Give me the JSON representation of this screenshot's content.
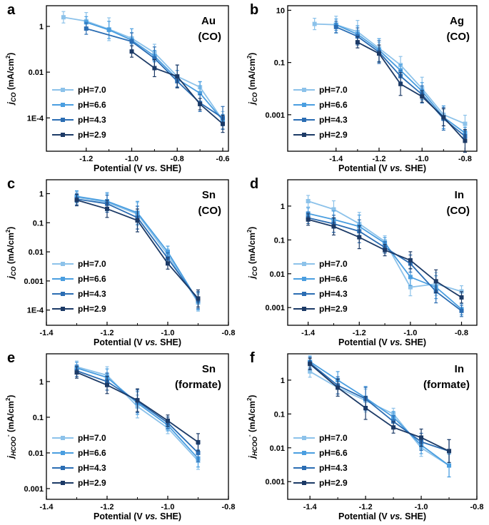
{
  "legend": [
    "pH=7.0",
    "pH=6.6",
    "pH=4.3",
    "pH=2.9"
  ],
  "colors": {
    "pH=7.0": "#8cc2ea",
    "pH=6.6": "#4a9ee0",
    "pH=4.3": "#2b6db3",
    "pH=2.9": "#1c3a66"
  },
  "chart_data": [
    {
      "panel": "a",
      "type": "line",
      "label_1": "Au",
      "label_2": "(CO)",
      "xlabel": "Potential (V vs. SHE)",
      "ylabel": "jCO (mA/cm2)",
      "xlim": [
        -1.375,
        -0.575
      ],
      "ylim": [
        3.5e-06,
        8
      ],
      "yscale": "log",
      "xticks": [
        -1.2,
        -1.0,
        -0.8,
        -0.6
      ],
      "xticklabels": [
        "-1.2",
        "-1.0",
        "-0.8",
        "-0.6"
      ],
      "yticks": [
        1,
        0.01,
        0.0001
      ],
      "yticklabels": [
        "1",
        "0.01",
        "1E-4"
      ],
      "series": [
        {
          "name": "pH=7.0",
          "x": [
            -1.3,
            -1.2,
            -1.1,
            -1.0,
            -0.9,
            -0.8,
            -0.7,
            -0.6
          ],
          "y": [
            2.5,
            1.7,
            0.75,
            0.3,
            0.07,
            0.0065,
            0.0022,
            8e-05
          ]
        },
        {
          "name": "pH=6.6",
          "x": [
            -1.2,
            -1.1,
            -1.0,
            -0.9,
            -0.8,
            -0.7,
            -0.6
          ],
          "y": [
            1.5,
            0.7,
            0.25,
            0.05,
            0.005,
            0.0012,
            8e-05
          ]
        },
        {
          "name": "pH=4.3",
          "x": [
            -1.2,
            -1.0,
            -0.9,
            -0.8,
            -0.7,
            -0.6
          ],
          "y": [
            0.8,
            0.22,
            0.04,
            0.004,
            0.00045,
            0.0001
          ]
        },
        {
          "name": "pH=2.9",
          "x": [
            -1.0,
            -0.9,
            -0.8,
            -0.7,
            -0.6
          ],
          "y": [
            0.08,
            0.015,
            0.0065,
            0.0004,
            5.5e-05
          ]
        }
      ]
    },
    {
      "panel": "b",
      "type": "line",
      "label_1": "Ag",
      "label_2": "(CO)",
      "xlabel": "Potential (V vs. SHE)",
      "ylabel": "jCO (mA/cm2)",
      "xlim": [
        -1.625,
        -0.745
      ],
      "ylim": [
        4e-05,
        15
      ],
      "yscale": "log",
      "xticks": [
        -1.4,
        -1.2,
        -1.0,
        -0.8
      ],
      "xticklabels": [
        "-1.4",
        "-1.2",
        "-1.0",
        "-0.8"
      ],
      "yticks": [
        10,
        0.1,
        0.001
      ],
      "yticklabels": [
        "10",
        "0.1",
        "0.001"
      ],
      "series": [
        {
          "name": "pH=7.0",
          "x": [
            -1.5,
            -1.4,
            -1.3,
            -1.2,
            -1.1,
            -1.0,
            -0.9,
            -0.8
          ],
          "y": [
            3.0,
            2.8,
            1.5,
            0.35,
            0.08,
            0.01,
            0.001,
            0.00045
          ]
        },
        {
          "name": "pH=6.6",
          "x": [
            -1.4,
            -1.3,
            -1.2,
            -1.1,
            -1.0,
            -0.9,
            -0.8
          ],
          "y": [
            2.8,
            1.2,
            0.3,
            0.05,
            0.008,
            0.0008,
            0.0002
          ]
        },
        {
          "name": "pH=4.3",
          "x": [
            -1.4,
            -1.3,
            -1.2,
            -1.1,
            -1.0,
            -0.9,
            -0.8
          ],
          "y": [
            2.3,
            1.0,
            0.25,
            0.03,
            0.006,
            0.0007,
            0.00015
          ]
        },
        {
          "name": "pH=2.9",
          "x": [
            -1.3,
            -1.2,
            -1.1,
            -1.0,
            -0.9,
            -0.8
          ],
          "y": [
            0.6,
            0.22,
            0.015,
            0.005,
            0.0008,
            0.0001
          ]
        }
      ]
    },
    {
      "panel": "c",
      "type": "line",
      "label_1": "Sn",
      "label_2": "(CO)",
      "xlabel": "Potential (V vs. SHE)",
      "ylabel": "jCO (mA/cm2)",
      "xlim": [
        -1.4,
        -0.8
      ],
      "ylim": [
        3e-05,
        3
      ],
      "yscale": "log",
      "xticks": [
        -1.4,
        -1.2,
        -1.0,
        -0.8
      ],
      "xticklabels": [
        "-1.4",
        "-1.2",
        "-1.0",
        "-0.8"
      ],
      "yticks": [
        1,
        0.1,
        0.01,
        0.001,
        0.0001
      ],
      "yticklabels": [
        "1",
        "0.1",
        "0.01",
        "0.001",
        "1E-4"
      ],
      "series": [
        {
          "name": "pH=7.0",
          "x": [
            -1.3,
            -1.2,
            -1.1,
            -1.0,
            -0.9
          ],
          "y": [
            0.75,
            0.5,
            0.2,
            0.008,
            0.00018
          ]
        },
        {
          "name": "pH=6.6",
          "x": [
            -1.3,
            -1.2,
            -1.1,
            -1.0,
            -0.9
          ],
          "y": [
            0.8,
            0.55,
            0.22,
            0.01,
            0.0002
          ]
        },
        {
          "name": "pH=4.3",
          "x": [
            -1.3,
            -1.2,
            -1.1,
            -1.0,
            -0.9
          ],
          "y": [
            0.65,
            0.45,
            0.15,
            0.006,
            0.00022
          ]
        },
        {
          "name": "pH=2.9",
          "x": [
            -1.3,
            -1.2,
            -1.1,
            -1.0,
            -0.9
          ],
          "y": [
            0.6,
            0.3,
            0.12,
            0.004,
            0.00025
          ]
        }
      ]
    },
    {
      "panel": "d",
      "type": "line",
      "label_1": "In",
      "label_2": "(CO)",
      "xlabel": "Potential (V vs. SHE)",
      "ylabel": "jCO (mA/cm2)",
      "xlim": [
        -1.48,
        -0.74
      ],
      "ylim": [
        0.0003,
        6
      ],
      "yscale": "log",
      "xticks": [
        -1.4,
        -1.2,
        -1.0,
        -0.8
      ],
      "xticklabels": [
        "-1.4",
        "-1.2",
        "-1.0",
        "-0.8"
      ],
      "yticks": [
        1,
        0.1,
        0.01,
        0.001
      ],
      "yticklabels": [
        "1",
        "0.1",
        "0.01",
        "0.001"
      ],
      "series": [
        {
          "name": "pH=7.0",
          "x": [
            -1.4,
            -1.3,
            -1.2,
            -1.1,
            -1.0,
            -0.9,
            -0.8
          ],
          "y": [
            1.4,
            0.8,
            0.3,
            0.09,
            0.004,
            0.005,
            0.003
          ]
        },
        {
          "name": "pH=6.6",
          "x": [
            -1.4,
            -1.3,
            -1.2,
            -1.1,
            -1.0,
            -0.9,
            -0.8
          ],
          "y": [
            0.6,
            0.4,
            0.25,
            0.08,
            0.008,
            0.004,
            0.0009
          ]
        },
        {
          "name": "pH=4.3",
          "x": [
            -1.4,
            -1.3,
            -1.2,
            -1.1,
            -1.0,
            -0.9,
            -0.8
          ],
          "y": [
            0.45,
            0.3,
            0.18,
            0.06,
            0.02,
            0.003,
            0.0008
          ]
        },
        {
          "name": "pH=2.9",
          "x": [
            -1.4,
            -1.3,
            -1.2,
            -1.1,
            -1.0,
            -0.9,
            -0.8
          ],
          "y": [
            0.4,
            0.25,
            0.12,
            0.05,
            0.025,
            0.006,
            0.002
          ]
        }
      ]
    },
    {
      "panel": "e",
      "type": "line",
      "label_1": "Sn",
      "label_2": "(formate)",
      "xlabel": "Potential (V vs. SHE)",
      "ylabel": "jHCOO- (mA/cm2)",
      "xlim": [
        -1.4,
        -0.8
      ],
      "ylim": [
        0.0005,
        6
      ],
      "yscale": "log",
      "xticks": [
        -1.4,
        -1.2,
        -1.0,
        -0.8
      ],
      "xticklabels": [
        "-1.4",
        "-1.2",
        "-1.0",
        "-0.8"
      ],
      "yticks": [
        1,
        0.1,
        0.01,
        0.001
      ],
      "yticklabels": [
        "1",
        "0.1",
        "0.01",
        "0.001"
      ],
      "series": [
        {
          "name": "pH=7.0",
          "x": [
            -1.3,
            -1.2,
            -1.1,
            -1.0,
            -0.9
          ],
          "y": [
            2.6,
            1.5,
            0.2,
            0.05,
            0.006
          ]
        },
        {
          "name": "pH=6.6",
          "x": [
            -1.3,
            -1.2,
            -1.1,
            -1.0,
            -0.9
          ],
          "y": [
            2.4,
            1.3,
            0.25,
            0.06,
            0.007
          ]
        },
        {
          "name": "pH=4.3",
          "x": [
            -1.3,
            -1.2,
            -1.1,
            -1.0,
            -0.9
          ],
          "y": [
            2.0,
            1.0,
            0.28,
            0.07,
            0.01
          ]
        },
        {
          "name": "pH=2.9",
          "x": [
            -1.3,
            -1.2,
            -1.1,
            -1.0,
            -0.9
          ],
          "y": [
            1.8,
            0.8,
            0.3,
            0.08,
            0.02
          ]
        }
      ]
    },
    {
      "panel": "f",
      "type": "line",
      "label_1": "In",
      "label_2": "(formate)",
      "xlabel": "Potential (V vs. SHE)",
      "ylabel": "jHCOO- (mA/cm2)",
      "xlim": [
        -1.48,
        -0.8
      ],
      "ylim": [
        0.0003,
        6
      ],
      "yscale": "log",
      "xticks": [
        -1.4,
        -1.2,
        -1.0,
        -0.8
      ],
      "xticklabels": [
        "-1.4",
        "-1.2",
        "-1.0",
        "-0.8"
      ],
      "yticks": [
        1,
        0.1,
        0.01,
        0.001
      ],
      "yticklabels": [
        "1",
        "0.1",
        "0.01",
        "0.001"
      ],
      "series": [
        {
          "name": "pH=7.0",
          "x": [
            -1.4,
            -1.3,
            -1.2,
            -1.1,
            -1.0,
            -0.9
          ],
          "y": [
            1.8,
            0.6,
            0.25,
            0.1,
            0.01,
            0.003
          ]
        },
        {
          "name": "pH=6.6",
          "x": [
            -1.4,
            -1.3,
            -1.2,
            -1.1,
            -1.0,
            -0.9
          ],
          "y": [
            3.5,
            1.0,
            0.3,
            0.08,
            0.012,
            0.003
          ]
        },
        {
          "name": "pH=4.3",
          "x": [
            -1.4,
            -1.3,
            -1.2,
            -1.1,
            -1.0,
            -0.9
          ],
          "y": [
            3.2,
            0.7,
            0.28,
            0.06,
            0.015,
            0.008
          ]
        },
        {
          "name": "pH=2.9",
          "x": [
            -1.4,
            -1.3,
            -1.2,
            -1.1,
            -1.0,
            -0.9
          ],
          "y": [
            3.0,
            0.6,
            0.15,
            0.04,
            0.02,
            0.008
          ]
        }
      ]
    }
  ]
}
